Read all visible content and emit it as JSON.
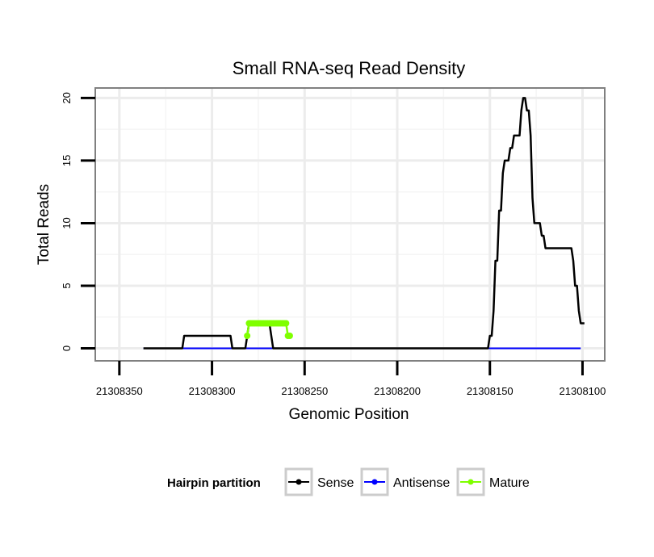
{
  "chart_data": {
    "type": "line",
    "title": "Small RNA-seq Read Density",
    "xlabel": "Genomic Position",
    "ylabel": "Total Reads",
    "xlim": [
      21308363,
      21308088
    ],
    "ylim": [
      -1,
      20.8
    ],
    "x_reversed": true,
    "x_ticks": [
      21308350,
      21308300,
      21308250,
      21308200,
      21308150,
      21308100
    ],
    "x_tick_labels": [
      "21308350",
      "21308300",
      "21308250",
      "21308200",
      "21308150",
      "21308100"
    ],
    "y_ticks": [
      0,
      5,
      10,
      15,
      20
    ],
    "y_tick_labels": [
      "0",
      "5",
      "10",
      "15",
      "20"
    ],
    "grid": true,
    "legend": {
      "title": "Hairpin partition",
      "position": "bottom",
      "entries": [
        "Sense",
        "Antisense",
        "Mature"
      ]
    },
    "series": [
      {
        "name": "Sense",
        "color": "#000000",
        "x": [
          21308337,
          21308316,
          21308315,
          21308314,
          21308290,
          21308289,
          21308282,
          21308281,
          21308280,
          21308269,
          21308268,
          21308267,
          21308151,
          21308150,
          21308149,
          21308148,
          21308147,
          21308146,
          21308145,
          21308144,
          21308143,
          21308142,
          21308141,
          21308140,
          21308139,
          21308138,
          21308137,
          21308136,
          21308135,
          21308134,
          21308133,
          21308132,
          21308131,
          21308130,
          21308129,
          21308128,
          21308127,
          21308126,
          21308125,
          21308124,
          21308123,
          21308122,
          21308121,
          21308120,
          21308119,
          21308118,
          21308117,
          21308116,
          21308115,
          21308114,
          21308113,
          21308112,
          21308111,
          21308110,
          21308109,
          21308108,
          21308107,
          21308106,
          21308105,
          21308104,
          21308103,
          21308102,
          21308101,
          21308100,
          21308099
        ],
        "y": [
          0,
          0,
          1,
          1,
          1,
          0,
          0,
          1,
          2,
          2,
          1,
          0,
          0,
          1,
          1,
          3,
          7,
          7,
          11,
          11,
          14,
          15,
          15,
          15,
          16,
          16,
          17,
          17,
          17,
          17,
          19,
          20,
          20,
          19,
          19,
          17,
          12,
          10,
          10,
          10,
          10,
          9,
          9,
          8,
          8,
          8,
          8,
          8,
          8,
          8,
          8,
          8,
          8,
          8,
          8,
          8,
          8,
          8,
          7,
          5,
          5,
          3,
          2,
          2,
          2
        ]
      },
      {
        "name": "Antisense",
        "color": "#0000ff",
        "x": [
          21308337,
          21308101
        ],
        "y": [
          0,
          0
        ]
      },
      {
        "name": "Mature",
        "color": "#7fff00",
        "x": [
          21308281,
          21308280,
          21308279,
          21308278,
          21308277,
          21308276,
          21308275,
          21308274,
          21308273,
          21308272,
          21308271,
          21308270,
          21308269,
          21308268,
          21308267,
          21308266,
          21308265,
          21308264,
          21308263,
          21308262,
          21308261,
          21308260,
          21308259,
          21308258
        ],
        "y": [
          1,
          2,
          2,
          2,
          2,
          2,
          2,
          2,
          2,
          2,
          2,
          2,
          2,
          2,
          2,
          2,
          2,
          2,
          2,
          2,
          2,
          2,
          1,
          1
        ]
      }
    ]
  }
}
